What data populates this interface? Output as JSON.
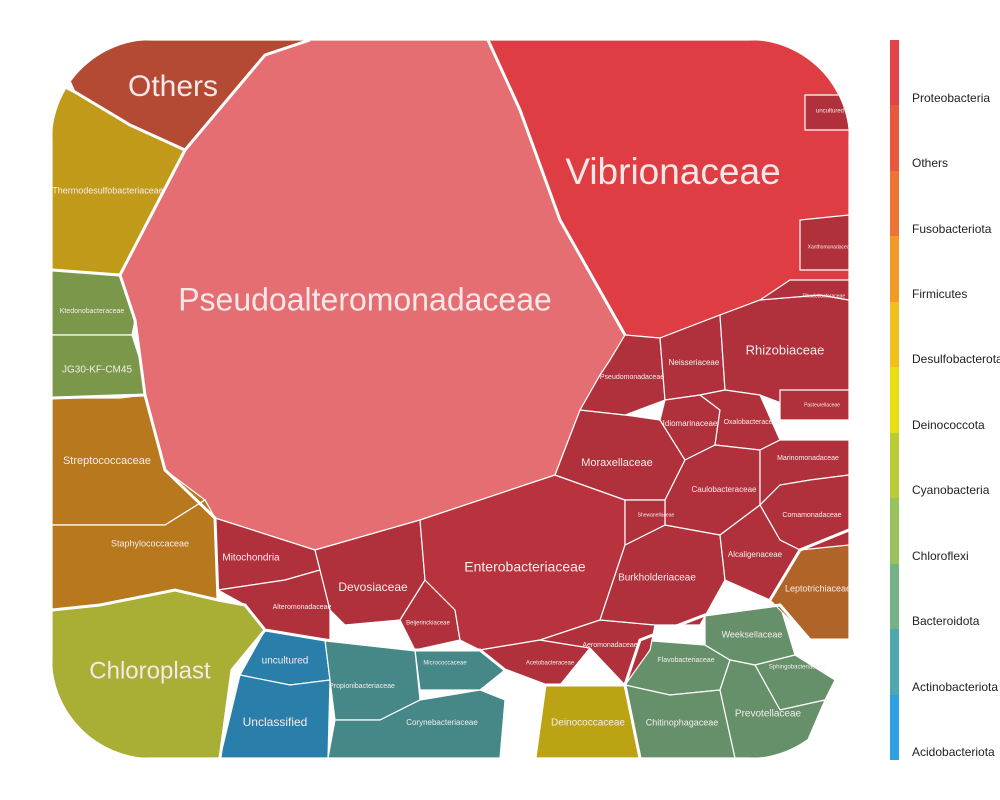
{
  "chart_data": {
    "type": "voronoi-treemap",
    "title": "",
    "legend": {
      "placement": "right",
      "entries": [
        {
          "label": "Proteobacteria",
          "color": "#E2424A"
        },
        {
          "label": "Others",
          "color": "#E8583E"
        },
        {
          "label": "Fusobacteriota",
          "color": "#EC7534"
        },
        {
          "label": "Firmicutes",
          "color": "#F19A28"
        },
        {
          "label": "Desulfobacterota",
          "color": "#F0C11A"
        },
        {
          "label": "Deinococcota",
          "color": "#E8DE12"
        },
        {
          "label": "Cyanobacteria",
          "color": "#B9CC36"
        },
        {
          "label": "Chloroflexi",
          "color": "#97C25C"
        },
        {
          "label": "Bacteroidota",
          "color": "#74B385"
        },
        {
          "label": "Actinobacteriota",
          "color": "#4EA8B0"
        },
        {
          "label": "Acidobacteriota",
          "color": "#2E9FE0"
        }
      ]
    },
    "families": [
      {
        "name": "Pseudoalteromonadaceae",
        "phylum": "Proteobacteria",
        "color": "#E46E71"
      },
      {
        "name": "Vibrionaceae",
        "phylum": "Proteobacteria",
        "color": "#DE3D44"
      },
      {
        "name": "Others",
        "phylum": "Others",
        "color": "#B54A34"
      },
      {
        "name": "Thermodesulfobacteriaceae",
        "phylum": "Desulfobacterota",
        "color": "#C29A1A"
      },
      {
        "name": "Ktedonobacteraceae",
        "phylum": "Chloroflexi",
        "color": "#7A974A"
      },
      {
        "name": "JG30-KF-CM45",
        "phylum": "Chloroflexi",
        "color": "#7A974A"
      },
      {
        "name": "Streptococcaceae",
        "phylum": "Firmicutes",
        "color": "#B7781E"
      },
      {
        "name": "Staphylococcaceae",
        "phylum": "Firmicutes",
        "color": "#B7781E"
      },
      {
        "name": "Chloroplast",
        "phylum": "Cyanobacteria",
        "color": "#A9AE34"
      },
      {
        "name": "uncultured",
        "phylum": "Acidobacteriota",
        "color": "#2A7FAA"
      },
      {
        "name": "Unclassified",
        "phylum": "Acidobacteriota",
        "color": "#2A7FAA"
      },
      {
        "name": "Propionibacteriaceae",
        "phylum": "Actinobacteriota",
        "color": "#468888"
      },
      {
        "name": "Micrococcaceae",
        "phylum": "Actinobacteriota",
        "color": "#468888"
      },
      {
        "name": "Corynebacteriaceae",
        "phylum": "Actinobacteriota",
        "color": "#468888"
      },
      {
        "name": "Deinococcaceae",
        "phylum": "Deinococcota",
        "color": "#BBA314"
      },
      {
        "name": "Flavobacteriaceae",
        "phylum": "Bacteroidota",
        "color": "#66906A"
      },
      {
        "name": "Weeksellaceae",
        "phylum": "Bacteroidota",
        "color": "#66906A"
      },
      {
        "name": "Sphingobacteriaceae",
        "phylum": "Bacteroidota",
        "color": "#66906A"
      },
      {
        "name": "Chitinophagaceae",
        "phylum": "Bacteroidota",
        "color": "#66906A"
      },
      {
        "name": "Prevotellaceae",
        "phylum": "Bacteroidota",
        "color": "#66906A"
      },
      {
        "name": "Leptotrichiaceae",
        "phylum": "Fusobacteriota",
        "color": "#B06428"
      },
      {
        "name": "Mitochondria",
        "phylum": "Proteobacteria",
        "color": "#B0313B"
      },
      {
        "name": "Alteromonadaceae",
        "phylum": "Proteobacteria",
        "color": "#B0313B"
      },
      {
        "name": "Devosiaceae",
        "phylum": "Proteobacteria",
        "color": "#B0313B"
      },
      {
        "name": "Beijerinckiaceae",
        "phylum": "Proteobacteria",
        "color": "#B0313B"
      },
      {
        "name": "Enterobacteriaceae",
        "phylum": "Proteobacteria",
        "color": "#B8333D"
      },
      {
        "name": "Acetobacteraceae",
        "phylum": "Proteobacteria",
        "color": "#B0313B"
      },
      {
        "name": "Aeromonadaceae",
        "phylum": "Proteobacteria",
        "color": "#B0313B"
      },
      {
        "name": "Burkholderiaceae",
        "phylum": "Proteobacteria",
        "color": "#B0313B"
      },
      {
        "name": "Moraxellaceae",
        "phylum": "Proteobacteria",
        "color": "#B0313B"
      },
      {
        "name": "Pseudomonadaceae",
        "phylum": "Proteobacteria",
        "color": "#B0313B"
      },
      {
        "name": "Neisseriaceae",
        "phylum": "Proteobacteria",
        "color": "#B0313B"
      },
      {
        "name": "Rhizobiaceae",
        "phylum": "Proteobacteria",
        "color": "#B0313B"
      },
      {
        "name": "Idiomarinaceae",
        "phylum": "Proteobacteria",
        "color": "#B0313B"
      },
      {
        "name": "Oxalobacteraceae",
        "phylum": "Proteobacteria",
        "color": "#B0313B"
      },
      {
        "name": "Caulobacteraceae",
        "phylum": "Proteobacteria",
        "color": "#B0313B"
      },
      {
        "name": "Marinomonadaceae",
        "phylum": "Proteobacteria",
        "color": "#B0313B"
      },
      {
        "name": "Comamonadaceae",
        "phylum": "Proteobacteria",
        "color": "#B0313B"
      },
      {
        "name": "Alcaligenaceae",
        "phylum": "Proteobacteria",
        "color": "#B0313B"
      },
      {
        "name": "Shewanellaceae",
        "phylum": "Proteobacteria",
        "color": "#B0313B"
      },
      {
        "name": "Rhodobacteraceae",
        "phylum": "Proteobacteria",
        "color": "#B0313B"
      },
      {
        "name": "Xanthomonadaceae",
        "phylum": "Proteobacteria",
        "color": "#B0313B"
      },
      {
        "name": "uncultured",
        "phylum": "Proteobacteria",
        "color": "#B0313B"
      },
      {
        "name": "Pasteurellaceae",
        "phylum": "Proteobacteria",
        "color": "#B0313B"
      }
    ]
  }
}
